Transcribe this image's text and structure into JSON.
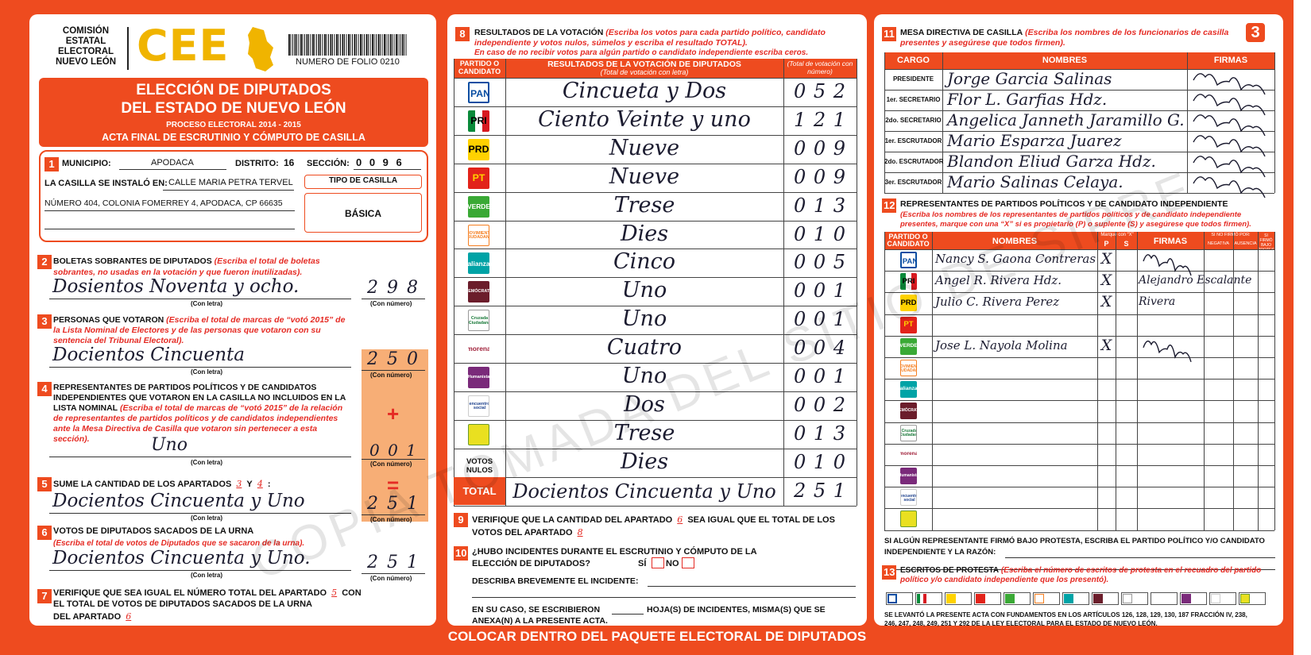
{
  "header": {
    "org": [
      "COMISIÓN",
      "ESTATAL",
      "ELECTORAL",
      "NUEVO LEÓN"
    ],
    "logo": "CEE",
    "folio": "NUMERO DE FOLIO 0210",
    "title": [
      "ELECCIÓN DE DIPUTADOS",
      "DEL ESTADO DE NUEVO LEÓN"
    ],
    "process": "PROCESO ELECTORAL 2014 - 2015",
    "act": "ACTA FINAL DE ESCRUTINIO Y CÓMPUTO DE CASILLA",
    "page": "3"
  },
  "section1": {
    "num": "1",
    "municipio_label": "MUNICIPIO:",
    "municipio": "APODACA",
    "distrito_label": "DISTRITO:",
    "distrito": "16",
    "seccion_label": "SECCIÓN:",
    "seccion": "0 0 9 6",
    "installed_label": "LA CASILLA SE INSTALÓ EN:",
    "address": [
      "CALLE MARIA PETRA TERVEL",
      "NÚMERO 404, COLONIA FOMERREY 4, APODACA, CP 66635"
    ],
    "type_label": "TIPO DE CASILLA",
    "type": "BÁSICA"
  },
  "section2": {
    "num": "2",
    "title": "BOLETAS SOBRANTES DE DIPUTADOS",
    "note": "(Escriba el total de boletas sobrantes, no usadas en la votación y que fueron inutilizadas).",
    "letters": "Dosientos Noventa y ocho.",
    "number": "2 9 8",
    "letters_caption": "(Con letra)",
    "number_caption": "(Con número)"
  },
  "section3": {
    "num": "3",
    "title": "PERSONAS QUE VOTARON",
    "note": "(Escriba el total de marcas de “votó 2015” de la Lista Nominal de Electores y de las personas que votaron con su sentencia del Tribunal Electoral).",
    "letters": "Docientos Cincuenta",
    "number": "2 5 0",
    "letters_caption": "(Con letra)",
    "number_caption": "(Con número)"
  },
  "section4": {
    "num": "4",
    "title": "REPRESENTANTES DE PARTIDOS POLÍTICOS Y DE CANDIDATOS INDEPENDIENTES QUE VOTARON EN LA CASILLA NO INCLUIDOS EN LA LISTA NOMINAL",
    "note": "(Escriba el total de marcas de “votó 2015” de la relación de representantes de partidos políticos y de candidatos independientes ante la Mesa Directiva de Casilla que votaron sin pertenecer a esta sección).",
    "letters": "Uno",
    "number": "0 0 1",
    "letters_caption": "(Con letra)",
    "number_caption": "(Con número)",
    "sign": "+"
  },
  "section5": {
    "num": "5",
    "title": "SUME LA CANTIDAD DE LOS APARTADOS",
    "ref1": "3",
    "conj": "Y",
    "ref2": "4",
    "colon": ":",
    "letters": "Docientos Cincuenta y Uno",
    "number": "2 5 1",
    "letters_caption": "(Con letra)",
    "number_caption": "(Con número)",
    "sign": "="
  },
  "section6": {
    "num": "6",
    "title": "VOTOS DE DIPUTADOS SACADOS DE LA URNA",
    "note": "(Escriba el total de votos de Diputados que se sacaron de la urna).",
    "letters": "Docientos Cincuenta y Uno.",
    "number": "2 5 1",
    "letters_caption": "(Con letra)",
    "number_caption": "(Con número)"
  },
  "section7": {
    "num": "7",
    "line1": "VERIFIQUE QUE SEA IGUAL EL NÚMERO TOTAL DEL APARTADO",
    "ref1": "5",
    "line1_end": "CON",
    "line2": "EL TOTAL DE VOTOS DE DIPUTADOS SACADOS DE LA URNA",
    "line3": "DEL APARTADO",
    "ref2": "6"
  },
  "section8": {
    "num": "8",
    "title": "RESULTADOS DE LA VOTACIÓN",
    "note": "(Escriba los votos para cada partido político, candidato independiente y votos nulos, súmelos y escriba el resultado TOTAL).",
    "note2": "En caso de no recibir votos para algún partido o candidato independiente escriba ceros.",
    "col_party": "PARTIDO O CANDIDATO",
    "col_results": "RESULTADOS DE LA VOTACIÓN DE DIPUTADOS",
    "col_letters": "(Total de votación con letra)",
    "col_number": "(Total de votación con número)",
    "rows": [
      {
        "party": "PAN",
        "letters": "Cincueta y Dos",
        "number": "0 5 2"
      },
      {
        "party": "PRI",
        "letters": "Ciento Veinte y uno",
        "number": "1 2 1"
      },
      {
        "party": "PRD",
        "letters": "Nueve",
        "number": "0 0 9"
      },
      {
        "party": "PT",
        "letters": "Nueve",
        "number": "0 0 9"
      },
      {
        "party": "VERDE",
        "letters": "Trese",
        "number": "0 1 3"
      },
      {
        "party": "MOVIMIENTO CIUDADANO",
        "letters": "Dies",
        "number": "0 1 0"
      },
      {
        "party": "alianza",
        "letters": "Cinco",
        "number": "0 0 5"
      },
      {
        "party": "DEMÓCRATA",
        "letters": "Uno",
        "number": "0 0 1"
      },
      {
        "party": "Cruzada Ciudadana",
        "letters": "Uno",
        "number": "0 0 1"
      },
      {
        "party": "morena",
        "letters": "Cuatro",
        "number": "0 0 4"
      },
      {
        "party": "Humanista",
        "letters": "Uno",
        "number": "0 0 1"
      },
      {
        "party": "encuentro social",
        "letters": "Dos",
        "number": "0 0 2"
      },
      {
        "letters": "Trese",
        "number": "0 1 3"
      }
    ],
    "null_label": "VOTOS NULOS",
    "null_letters": "Dies",
    "null_number": "0 1 0",
    "total_label": "TOTAL",
    "total_letters": "Docientos Cincuenta y Uno",
    "total_number": "2 5 1"
  },
  "section9": {
    "num": "9",
    "text": "VERIFIQUE QUE LA CANTIDAD DEL APARTADO",
    "ref1": "6",
    "text2": "SEA IGUAL QUE EL TOTAL DE LOS VOTOS DEL APARTADO",
    "ref2": "8"
  },
  "section10": {
    "num": "10",
    "question": [
      "¿HUBO INCIDENTES DURANTE EL ESCRUTINIO Y CÓMPUTO DE LA",
      "ELECCIÓN DE DIPUTADOS?"
    ],
    "yes": "SÍ",
    "no": "NO",
    "describe": "DESCRIBA BREVEMENTE EL INCIDENTE:",
    "sheets": [
      "EN SU CASO, SE ESCRIBIERON",
      "HOJA(S) DE INCIDENTES, MISMA(S) QUE SE",
      "ANEXA(N) A LA PRESENTE ACTA."
    ]
  },
  "section11": {
    "num": "11",
    "title": "MESA DIRECTIVA DE CASILLA",
    "note": "(Escriba los nombres de los funcionarios de casilla presentes y asegúrese que todos firmen).",
    "col_role": "CARGO",
    "col_names": "NOMBRES",
    "col_sign": "FIRMAS",
    "rows": [
      {
        "role": "PRESIDENTE",
        "name": "Jorge Garcia Salinas"
      },
      {
        "role": "1er. SECRETARIO",
        "name": "Flor L. Garfias Hdz."
      },
      {
        "role": "2do. SECRETARIO",
        "name": "Angelica Janneth Jaramillo G."
      },
      {
        "role": "1er. ESCRUTADOR",
        "name": "Mario Esparza Juarez"
      },
      {
        "role": "2do. ESCRUTADOR",
        "name": "Blandon Eliud Garza Hdz."
      },
      {
        "role": "3er. ESCRUTADOR",
        "name": "Mario Salinas Celaya."
      }
    ]
  },
  "section12": {
    "num": "12",
    "title": "REPRESENTANTES DE PARTIDOS POLÍTICOS Y DE CANDIDATO INDEPENDIENTE",
    "note": "(Escriba los nombres de los representantes de partidos políticos y de candidato independiente presentes, marque con una “X” si es propietario (P) o suplente (S) y asegúrese que todos firmen).",
    "col_party": "PARTIDO O CANDIDATO",
    "col_names": "NOMBRES",
    "col_mark": "Marque con “X”",
    "col_p": "P",
    "col_s": "S",
    "col_sign": "FIRMAS",
    "col_no_sign": "SI NO FIRMÓ POR:",
    "col_negativa": "NEGATIVA",
    "col_ausencia": "AUSENCIA",
    "col_protest": "SI FIRMÓ BAJO PROTESTA",
    "rows": [
      {
        "party": "PAN",
        "name": "Nancy S. Gaona Contreras",
        "p": "X"
      },
      {
        "party": "PRI",
        "name": "Angel R. Rivera Hdz.",
        "p": "X",
        "signature": "Alejandro Escalante"
      },
      {
        "party": "PRD",
        "name": "Julio C. Rivera Perez",
        "p": "X",
        "signature": "Rivera"
      },
      {
        "party": "PT"
      },
      {
        "party": "VERDE",
        "name": "Jose L. Nayola Molina",
        "p": "X"
      },
      {
        "party": "MOVIMIENTO CIUDADANO"
      },
      {
        "party": "alianza"
      },
      {
        "party": "DEMÓCRATA"
      },
      {
        "party": "Cruzada Ciudadana"
      },
      {
        "party": "morena"
      },
      {
        "party": "Humanista"
      },
      {
        "party": "encuentro social"
      },
      {}
    ],
    "protest_line": [
      "SI ALGÚN REPRESENTANTE FIRMÓ BAJO PROTESTA, ESCRIBA EL PARTIDO POLÍTICO Y/O CANDIDATO",
      "INDEPENDIENTE Y LA RAZÓN:"
    ]
  },
  "section13": {
    "num": "13",
    "title": "ESCRITOS DE PROTESTA",
    "note": "(Escriba el número de escritos de protesta en el recuadro del partido político y/o candidato independiente que los presentó).",
    "legal": [
      "SE LEVANTÓ LA PRESENTE ACTA CON FUNDAMENTOS EN LOS ARTÍCULOS 126, 128, 129, 130, 187 FRACCIÓN IV, 238,",
      "246, 247, 248, 249, 251 Y 292 DE LA LEY ELECTORAL PARA EL ESTADO DE NUEVO LEÓN."
    ]
  },
  "footer": "COLOCAR DENTRO DEL PAQUETE ELECTORAL DE DIPUTADOS",
  "watermark": "COPIA TOMADA DEL SITIO DE SIPRE"
}
